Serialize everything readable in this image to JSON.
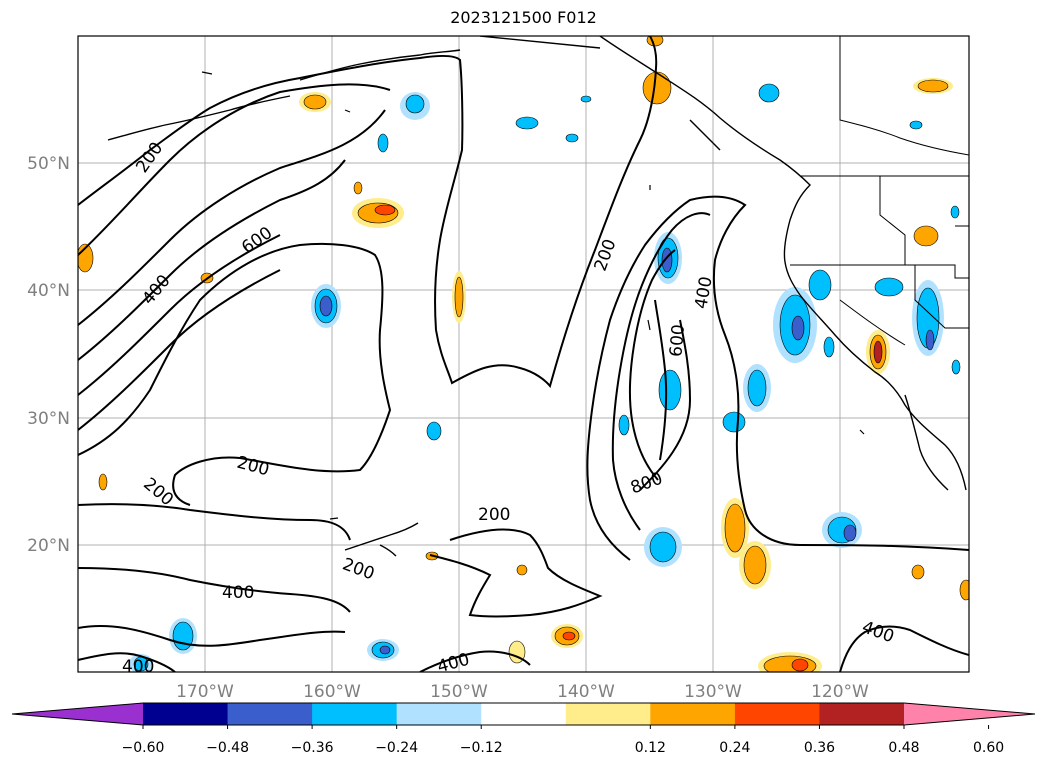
{
  "title": "2023121500 F012",
  "map": {
    "lat_labels": [
      "50°N",
      "40°N",
      "30°N",
      "20°N"
    ],
    "lon_labels": [
      "170°W",
      "160°W",
      "150°W",
      "140°W",
      "130°W",
      "120°W"
    ],
    "contour_labels": [
      "200",
      "600",
      "400",
      "200",
      "400",
      "600",
      "800",
      "200",
      "200",
      "200",
      "200",
      "400",
      "400",
      "400",
      "400"
    ]
  },
  "colorbar": {
    "ticks": [
      "−0.60",
      "−0.48",
      "−0.36",
      "−0.24",
      "−0.12",
      "0.12",
      "0.24",
      "0.36",
      "0.48",
      "0.60"
    ],
    "colors": [
      "#9b30d0",
      "#000090",
      "#3a5fcd",
      "#00bfff",
      "#b0e2ff",
      "#ffffff",
      "#ffec8b",
      "#ffa500",
      "#ff4500",
      "#b22222",
      "#ff82ab"
    ]
  }
}
